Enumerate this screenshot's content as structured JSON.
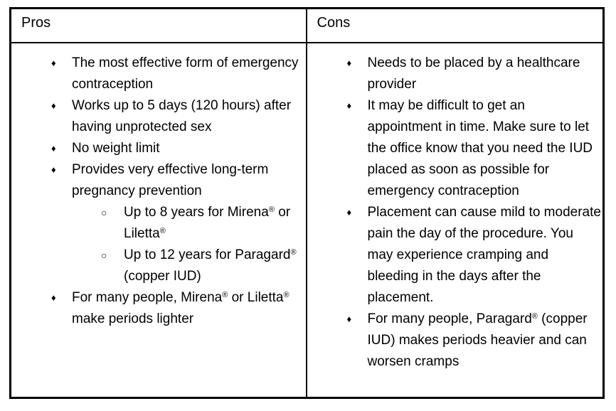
{
  "page": {
    "background_color": "#ffffff",
    "border_color": "#000000",
    "text_color": "#000000"
  },
  "table": {
    "bullets": {
      "level1": "♦",
      "level2": "○"
    },
    "columns": [
      {
        "header": "Pros",
        "items": [
          {
            "level": 1,
            "text": "The most effective form of emergency contraception"
          },
          {
            "level": 1,
            "text": "Works up to 5 days (120 hours) after having unprotected sex"
          },
          {
            "level": 1,
            "text": "No weight limit"
          },
          {
            "level": 1,
            "text": "Provides very effective long-term pregnancy prevention"
          },
          {
            "level": 2,
            "text": "Up to 8 years for Mirena® or Liletta®"
          },
          {
            "level": 2,
            "text": "Up to 12 years for Paragard® (copper IUD)"
          },
          {
            "level": 1,
            "text": "For many people, Mirena® or Liletta® make periods lighter"
          }
        ]
      },
      {
        "header": "Cons",
        "items": [
          {
            "level": 1,
            "text": "Needs to be placed by a healthcare provider"
          },
          {
            "level": 1,
            "text": "It may be difficult to get an appointment in time. Make sure to let the office know that you need the IUD placed as soon as possible for emergency contraception"
          },
          {
            "level": 1,
            "text": "Placement can cause mild to moderate pain the day of the procedure. You may experience cramping and bleeding in the days after the placement."
          },
          {
            "level": 1,
            "text": "For many people, Paragard® (copper IUD) makes periods heavier and can worsen cramps"
          }
        ]
      }
    ]
  }
}
